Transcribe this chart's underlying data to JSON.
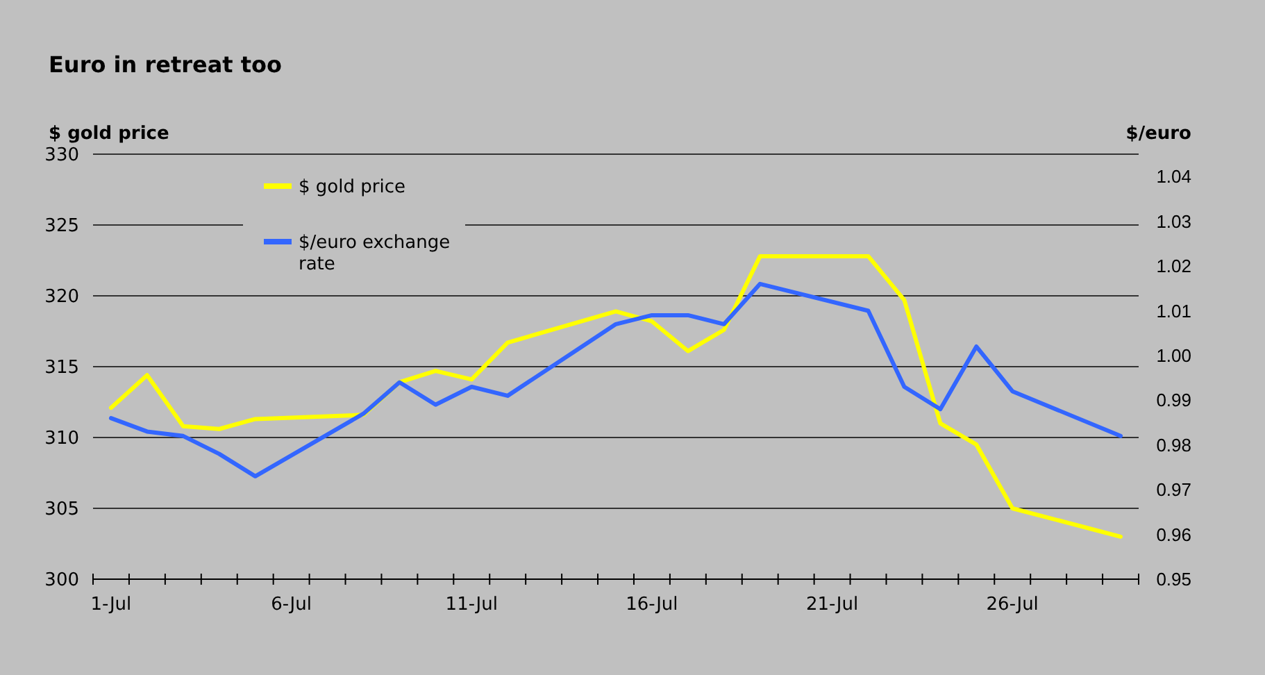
{
  "chart_data": {
    "type": "line",
    "title": "Euro in retreat too",
    "ylabel": "$ gold price",
    "y2label": "$/euro",
    "categories": [
      "1-Jul",
      null,
      null,
      null,
      null,
      "6-Jul",
      null,
      null,
      null,
      null,
      "11-Jul",
      null,
      null,
      null,
      null,
      "16-Jul",
      null,
      null,
      null,
      null,
      "21-Jul",
      null,
      null,
      null,
      null,
      "26-Jul",
      null,
      null,
      null
    ],
    "series": [
      {
        "name": "$ gold price",
        "color": "#ffff00",
        "values": [
          312.1,
          314.4,
          310.8,
          310.6,
          311.3,
          null,
          null,
          311.6,
          313.9,
          314.7,
          314.1,
          316.7,
          null,
          null,
          318.9,
          318.2,
          316.1,
          317.6,
          322.8,
          null,
          null,
          322.8,
          319.7,
          311.0,
          309.5,
          305.0,
          null,
          null,
          303.0
        ]
      },
      {
        "name": "$/euro exchange rate",
        "color": "#3366ff",
        "axis": "y2",
        "values": [
          0.986,
          0.983,
          0.982,
          0.978,
          0.973,
          null,
          null,
          0.987,
          0.994,
          0.989,
          0.993,
          0.991,
          null,
          null,
          1.007,
          1.009,
          1.009,
          1.007,
          1.016,
          null,
          null,
          1.01,
          0.993,
          0.988,
          1.002,
          0.992,
          null,
          null,
          0.982
        ]
      }
    ],
    "ylim": [
      300,
      330
    ],
    "yticks": [
      300,
      305,
      310,
      315,
      320,
      325,
      330
    ],
    "y2lim": [
      0.95,
      1.045
    ],
    "y2ticks": [
      {
        "value": 0.95,
        "label": "0.95"
      },
      {
        "value": 0.96,
        "label": "0.96"
      },
      {
        "value": 0.97,
        "label": "0.97"
      },
      {
        "value": 0.98,
        "label": "0.98"
      },
      {
        "value": 0.99,
        "label": "0.99"
      },
      {
        "value": 1.0,
        "label": "1.00"
      },
      {
        "value": 1.01,
        "label": "1.01"
      },
      {
        "value": 1.02,
        "label": "1.02"
      },
      {
        "value": 1.03,
        "label": "1.03"
      },
      {
        "value": 1.04,
        "label": "1.04"
      }
    ],
    "grid": "y",
    "legend": "top left",
    "marker": "none",
    "line_style": "solid"
  }
}
